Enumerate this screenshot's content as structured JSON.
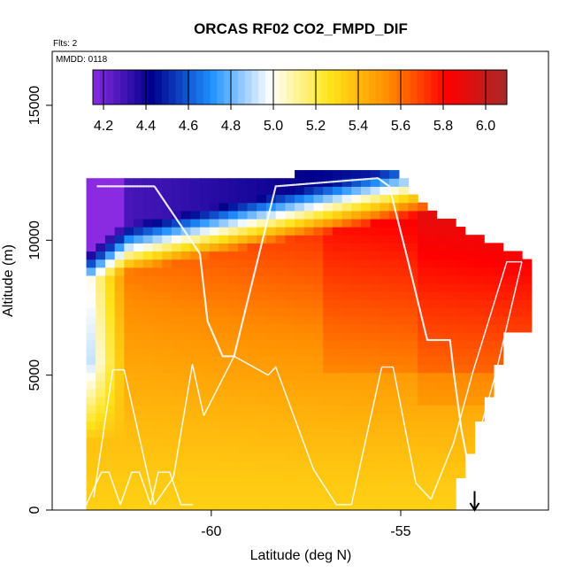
{
  "chart_data": {
    "type": "heatmap",
    "title": "ORCAS RF02 CO2_FMPD_DIF",
    "subtitle": "Flts: 2",
    "annotation": "MMDD: 0118",
    "xlabel": "Latitude (deg N)",
    "ylabel": "Altitude (m)",
    "xlim": [
      -64.2,
      -51.1
    ],
    "ylim": [
      0,
      17000
    ],
    "x_ticks": [
      -60,
      -55
    ],
    "x_tick_labels": [
      "-60",
      "-55"
    ],
    "y_ticks": [
      0,
      5000,
      10000,
      15000
    ],
    "y_tick_labels": [
      "0",
      "5000",
      "10000",
      "15000"
    ],
    "colorbar": {
      "ticks": [
        4.2,
        4.4,
        4.6,
        4.8,
        5.0,
        5.2,
        5.4,
        5.6,
        5.8,
        6.0
      ],
      "tick_labels": [
        "4.2",
        "4.4",
        "4.6",
        "4.8",
        "5.0",
        "5.2",
        "5.4",
        "5.6",
        "5.8",
        "6.0"
      ],
      "range": [
        4.15,
        6.1
      ],
      "stops": [
        "#8a2be2",
        "#00008b",
        "#1e90ff",
        "#ffffff",
        "#ffe41a",
        "#ff8c00",
        "#ff0000",
        "#a52a2a"
      ]
    },
    "field_extent": {
      "lat_bounds": [
        -63.3,
        -51.6
      ],
      "alt_max": 12300,
      "grid_resolution_deg": 0.25,
      "grid_resolution_m": 300
    },
    "flight_track": [
      [
        -63.0,
        12000
      ],
      [
        -61.5,
        12000
      ],
      [
        -60.3,
        9500
      ],
      [
        -60.1,
        7000
      ],
      [
        -59.7,
        5700
      ],
      [
        -59.4,
        5700
      ],
      [
        -58.3,
        12000
      ],
      [
        -55.6,
        12300
      ],
      [
        -55.3,
        12000
      ],
      [
        -54.8,
        9200
      ],
      [
        -54.3,
        6300
      ],
      [
        -53.7,
        6300
      ],
      [
        -53.6,
        5100
      ],
      [
        -53.4,
        3000
      ],
      [
        -53.1,
        800
      ],
      [
        -53.0,
        200
      ]
    ],
    "profile_track": [
      [
        -63.1,
        500
      ],
      [
        -62.6,
        5200
      ],
      [
        -62.3,
        5200
      ],
      [
        -61.5,
        200
      ],
      [
        -61.0,
        1200
      ],
      [
        -60.5,
        5400
      ],
      [
        -60.2,
        3500
      ],
      [
        -59.4,
        5700
      ],
      [
        -58.5,
        5000
      ],
      [
        -58.3,
        5300
      ],
      [
        -57.3,
        1500
      ],
      [
        -56.7,
        200
      ],
      [
        -56.3,
        200
      ],
      [
        -55.5,
        5300
      ],
      [
        -55.2,
        5300
      ],
      [
        -54.6,
        1000
      ],
      [
        -54.2,
        400
      ],
      [
        -53.6,
        2500
      ],
      [
        -53.1,
        5100
      ],
      [
        -52.2,
        9200
      ],
      [
        -51.8,
        9200
      ],
      [
        -52.5,
        5000
      ],
      [
        -53.0,
        2500
      ]
    ],
    "low_level_track": [
      [
        -63.3,
        200
      ],
      [
        -62.9,
        1400
      ],
      [
        -62.7,
        1400
      ],
      [
        -62.4,
        200
      ],
      [
        -62.1,
        1400
      ],
      [
        -61.9,
        1400
      ],
      [
        -61.6,
        200
      ],
      [
        -61.4,
        1400
      ],
      [
        -61.1,
        1400
      ],
      [
        -60.8,
        200
      ],
      [
        -60.5,
        200
      ]
    ],
    "arrow": {
      "lat": -53.05,
      "from_alt": 700,
      "to_alt": 0
    }
  }
}
